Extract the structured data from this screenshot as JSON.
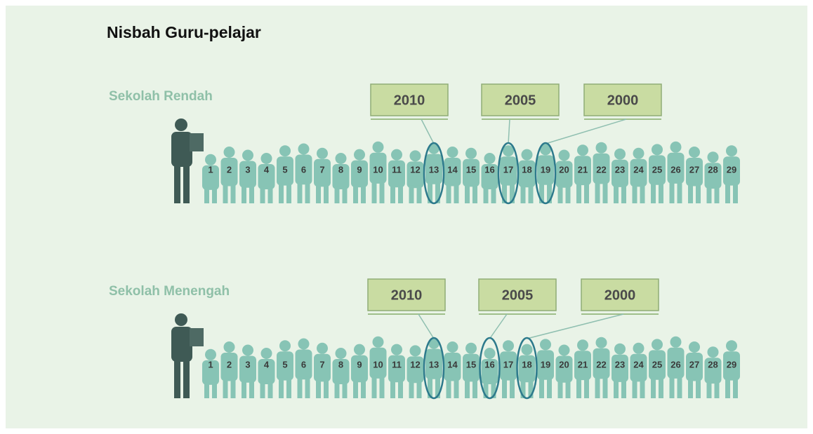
{
  "title": "Nisbah Guru-pelajar",
  "sections": [
    {
      "label": "Sekolah Rendah",
      "students": [
        1,
        2,
        3,
        4,
        5,
        6,
        7,
        8,
        9,
        10,
        11,
        12,
        13,
        14,
        15,
        16,
        17,
        18,
        19,
        20,
        21,
        22,
        23,
        24,
        25,
        26,
        27,
        28,
        29
      ],
      "callouts": [
        {
          "label": "2010",
          "student": 13
        },
        {
          "label": "2005",
          "student": 17
        },
        {
          "label": "2000",
          "student": 19
        }
      ]
    },
    {
      "label": "Sekolah Menengah",
      "students": [
        1,
        2,
        3,
        4,
        5,
        6,
        7,
        8,
        9,
        10,
        11,
        12,
        13,
        14,
        15,
        16,
        17,
        18,
        19,
        20,
        21,
        22,
        23,
        24,
        25,
        26,
        27,
        28,
        29
      ],
      "callouts": [
        {
          "label": "2010",
          "student": 13
        },
        {
          "label": "2005",
          "student": 16
        },
        {
          "label": "2000",
          "student": 18
        }
      ]
    }
  ]
}
